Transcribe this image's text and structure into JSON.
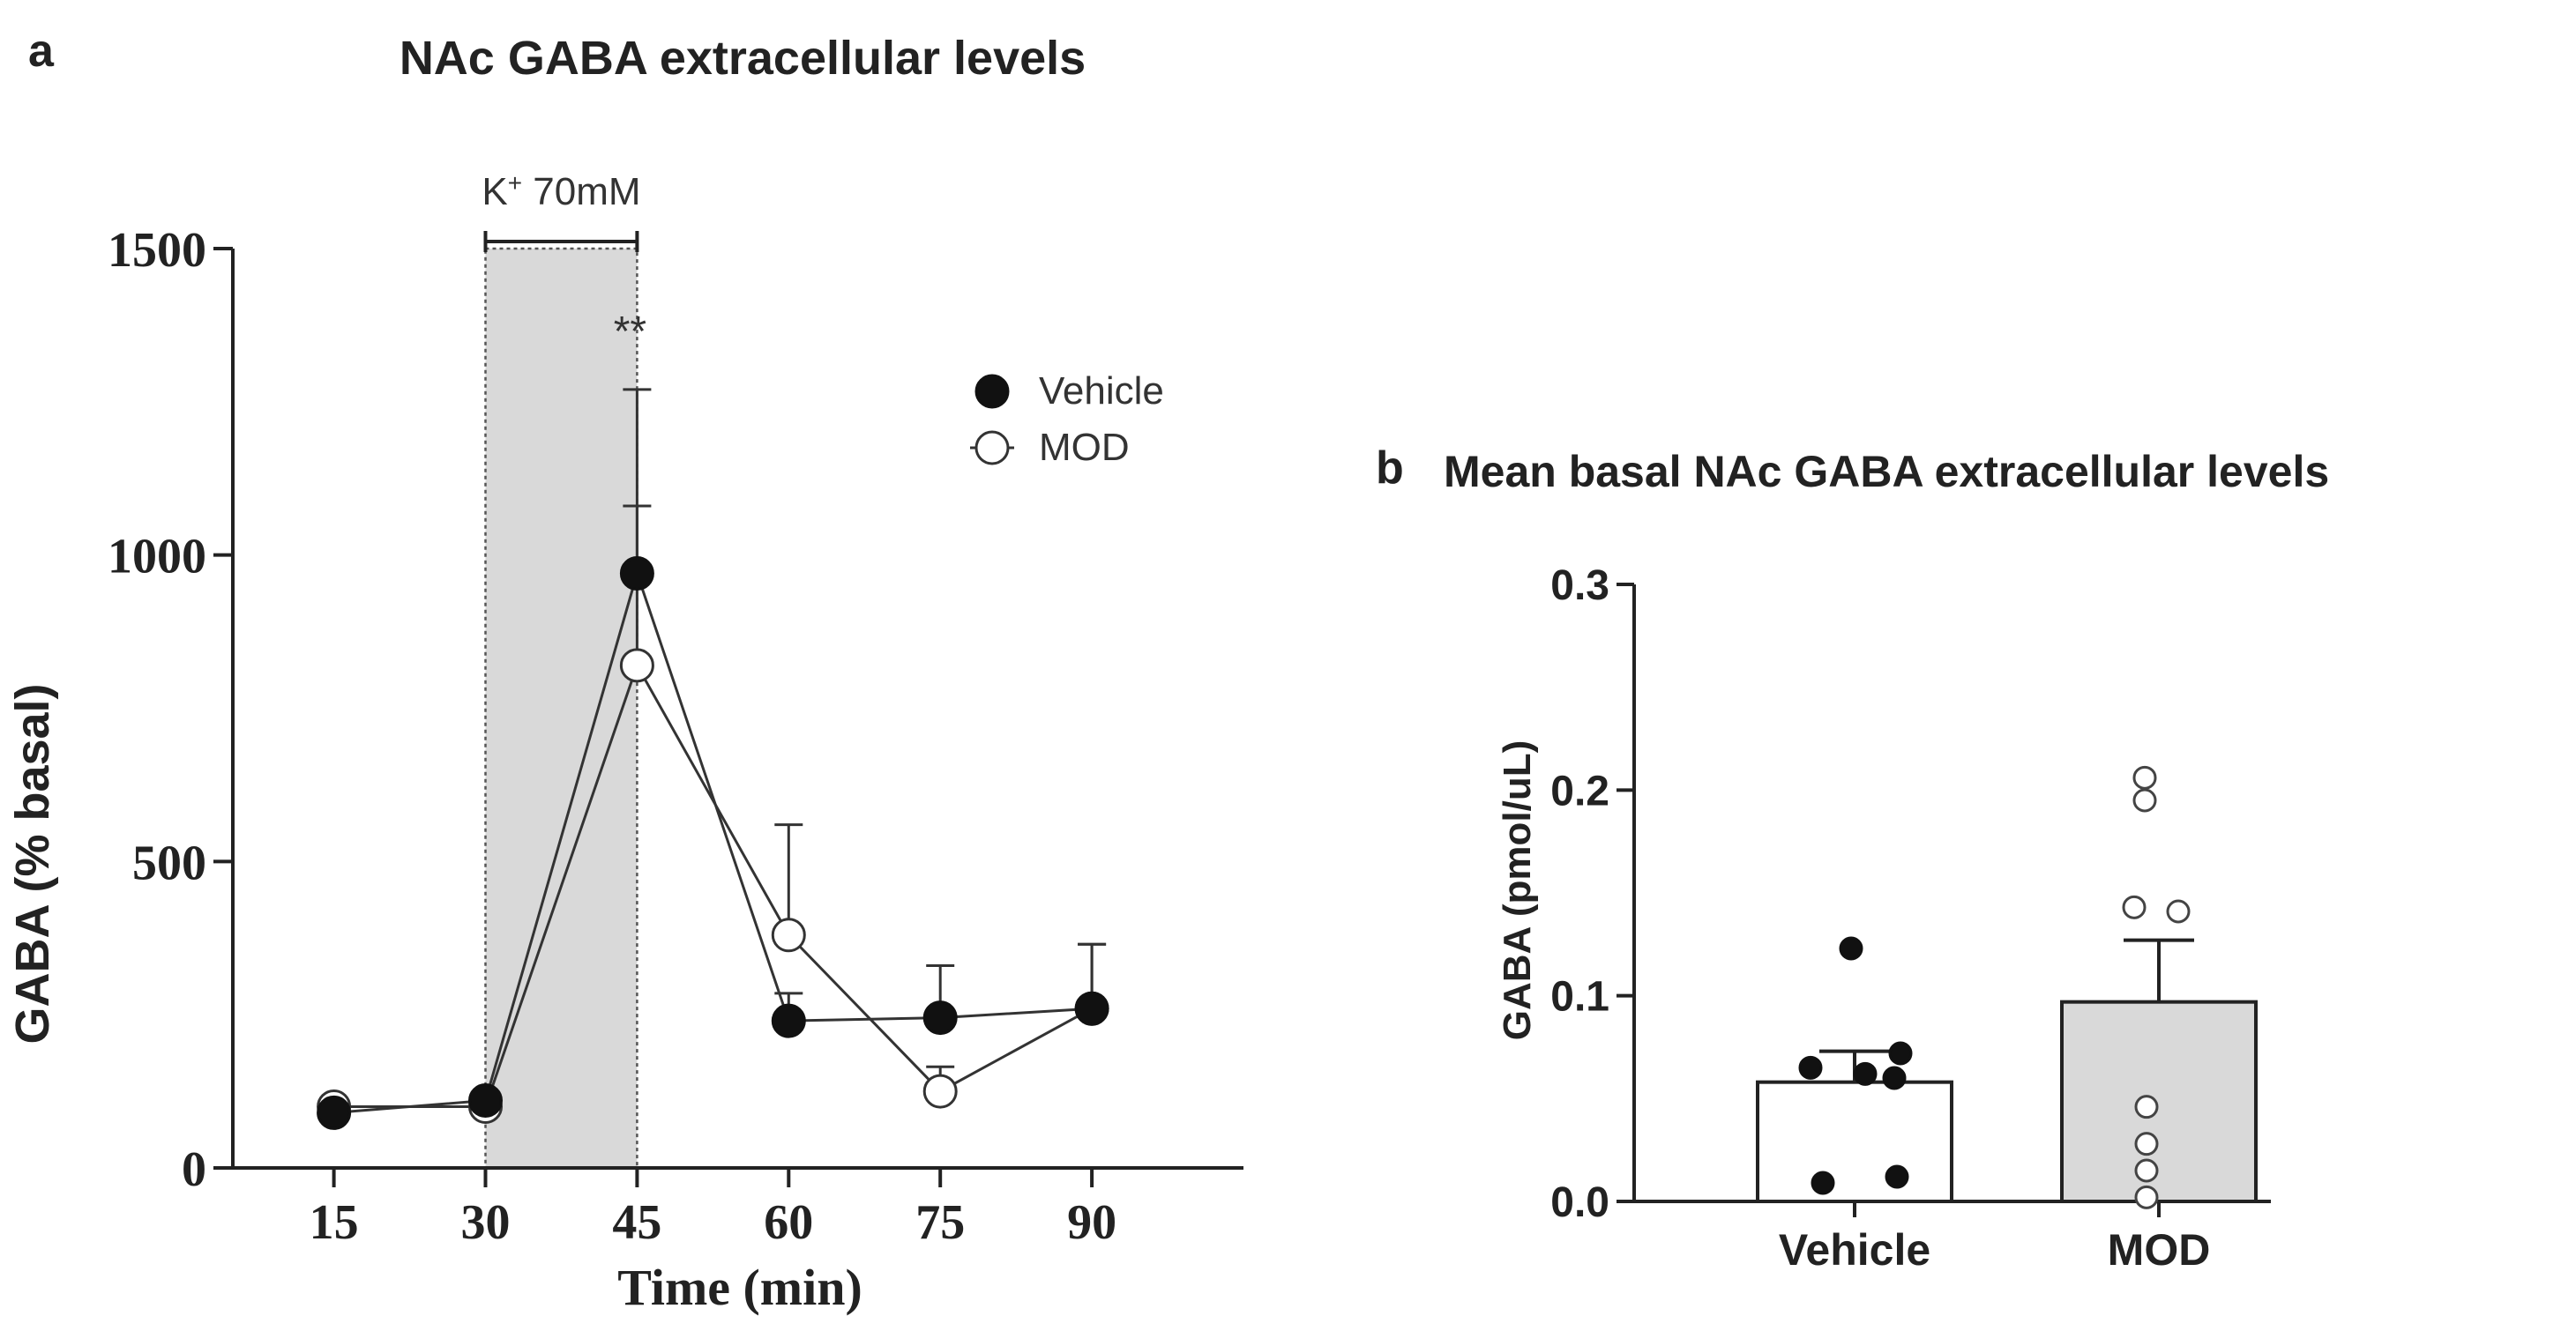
{
  "panel_a": {
    "letter": "a",
    "chart_data": {
      "type": "line",
      "title": "NAc GABA extracellular levels",
      "xlabel": "Time (min)",
      "ylabel": "GABA (% basal)",
      "x": [
        15,
        30,
        45,
        60,
        75,
        90
      ],
      "x_ticks": [
        "15",
        "30",
        "45",
        "60",
        "75",
        "90"
      ],
      "xlim": [
        5,
        105
      ],
      "ylim": [
        0,
        1500
      ],
      "y_ticks": [
        "0",
        "500",
        "1000",
        "1500"
      ],
      "shaded_window": [
        30,
        45
      ],
      "window_label": "K",
      "window_label_sup": "+",
      "window_label_rest": " 70mM",
      "significance": "**",
      "legend_position": "top-right",
      "series": [
        {
          "name": "Vehicle",
          "marker": "filled",
          "values": [
            90,
            110,
            970,
            240,
            245,
            260
          ],
          "errors": [
            10,
            10,
            300,
            45,
            85,
            105
          ]
        },
        {
          "name": "MOD",
          "marker": "open",
          "values": [
            100,
            100,
            820,
            380,
            125,
            260
          ],
          "errors": [
            10,
            10,
            260,
            180,
            40,
            105
          ]
        }
      ]
    }
  },
  "panel_b": {
    "letter": "b",
    "chart_data": {
      "type": "bar",
      "title": "Mean basal NAc GABA extracellular levels",
      "ylabel": "GABA (pmol/uL)",
      "categories": [
        "Vehicle",
        "MOD"
      ],
      "ylim": [
        0,
        0.3
      ],
      "y_ticks": [
        "0.0",
        "0.1",
        "0.2",
        "0.3"
      ],
      "series": [
        {
          "name": "Mean",
          "values": [
            0.058,
            0.097
          ],
          "errors": [
            0.015,
            0.03
          ],
          "fills": [
            "#ffffff",
            "#d9d9d9"
          ]
        }
      ],
      "points": [
        {
          "category": "Vehicle",
          "marker": "filled",
          "values": [
            0.123,
            0.072,
            0.065,
            0.062,
            0.06,
            0.012,
            0.009
          ]
        },
        {
          "category": "MOD",
          "marker": "open",
          "values": [
            0.206,
            0.195,
            0.143,
            0.141,
            0.046,
            0.028,
            0.015,
            0.002
          ]
        }
      ]
    }
  }
}
